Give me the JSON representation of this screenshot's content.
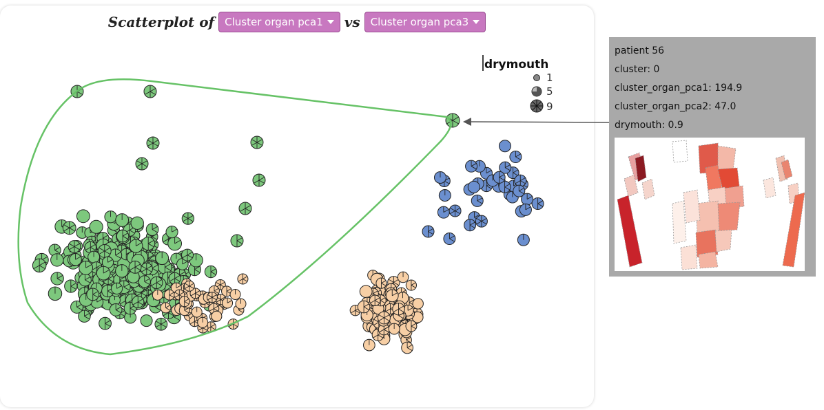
{
  "header": {
    "prefix": "Scatterplot of",
    "x_select": "Cluster organ pca1",
    "joiner": "vs",
    "y_select": "Cluster organ pca3"
  },
  "legend": {
    "title": "drymouth",
    "entries": [
      "1",
      "5",
      "9"
    ]
  },
  "colors": {
    "cluster_0": "#7dc87d",
    "cluster_1": "#6b8fcf",
    "cluster_2": "#f7cfa5",
    "hull": "#66c266",
    "select_bg": "#c878c0",
    "tooltip_bg": "#a9a9a9"
  },
  "tooltip": {
    "patient": "patient 56",
    "cluster": "cluster: 0",
    "pca1": "cluster_organ_pca1: 194.9",
    "pca2": "cluster_organ_pca2: 47.0",
    "drymouth": "drymouth: 0.9"
  },
  "chart_data": {
    "type": "scatter",
    "title": "",
    "xlabel": "Cluster organ pca1",
    "ylabel": "Cluster organ pca3",
    "size_variable": "drymouth",
    "size_legend": [
      1,
      5,
      9
    ],
    "series": [
      {
        "name": "cluster 0",
        "color": "#7dc87d",
        "points": "many points, left region",
        "highlighted_patient": "patient 56"
      },
      {
        "name": "cluster 1",
        "color": "#6b8fcf",
        "points": "right region"
      },
      {
        "name": "cluster 2",
        "color": "#f7cfa5",
        "points": "center-bottom region"
      }
    ],
    "grid": false,
    "legend_position": "top-right"
  }
}
